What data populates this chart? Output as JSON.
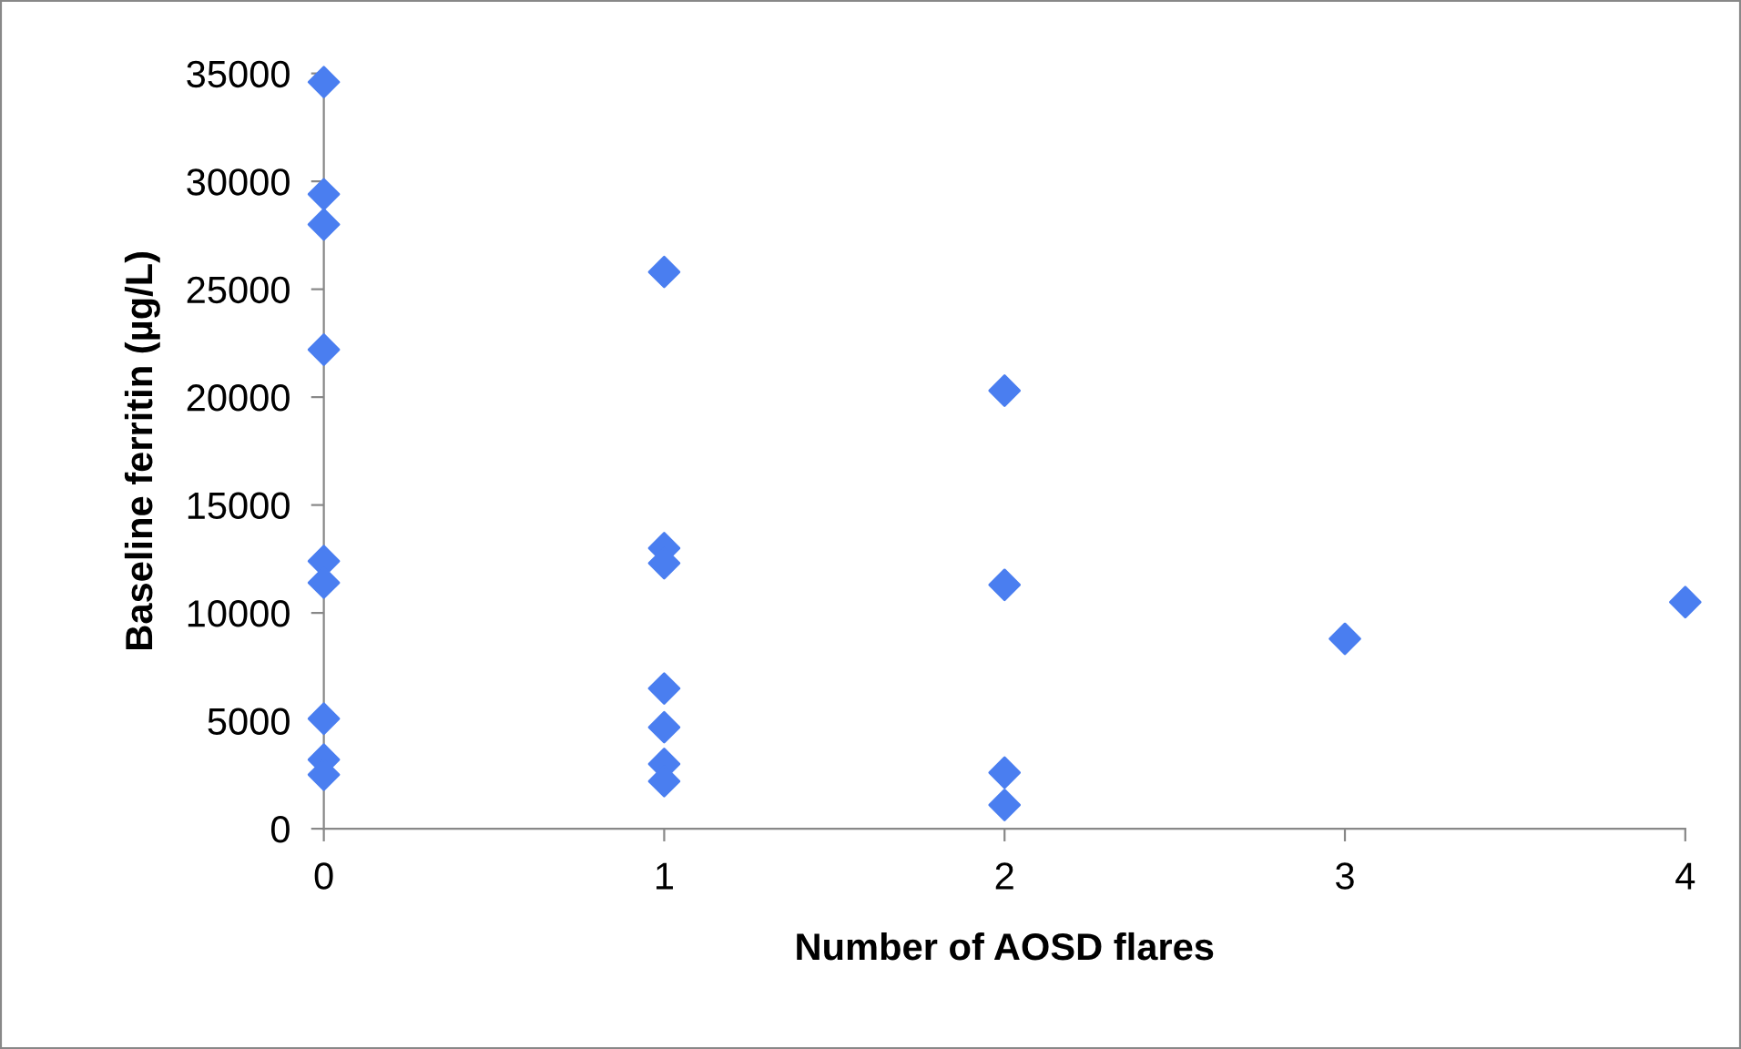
{
  "chart_data": {
    "type": "scatter",
    "xlabel": "Number of AOSD flares",
    "ylabel": "Baseline ferritin (µg/L)",
    "series": [
      {
        "color": "#4a7ef0",
        "x": [
          0,
          0,
          0,
          0,
          0,
          0,
          0,
          0,
          0,
          1,
          1,
          1,
          1,
          1,
          1,
          1,
          2,
          2,
          2,
          2,
          3,
          4
        ],
        "values": [
          34600,
          29400,
          28000,
          22200,
          12400,
          11400,
          5100,
          3200,
          2500,
          25800,
          13000,
          12300,
          6500,
          4700,
          3000,
          2200,
          20300,
          11300,
          2600,
          1100,
          8800,
          10500
        ]
      }
    ],
    "xlim": [
      0,
      4
    ],
    "xticks": [
      0,
      1,
      2,
      3,
      4
    ],
    "ylim": [
      0,
      35000
    ],
    "yticks": [
      0,
      5000,
      10000,
      15000,
      20000,
      25000,
      30000,
      35000
    ],
    "marker": "diamond",
    "grid": false,
    "legend": false
  }
}
